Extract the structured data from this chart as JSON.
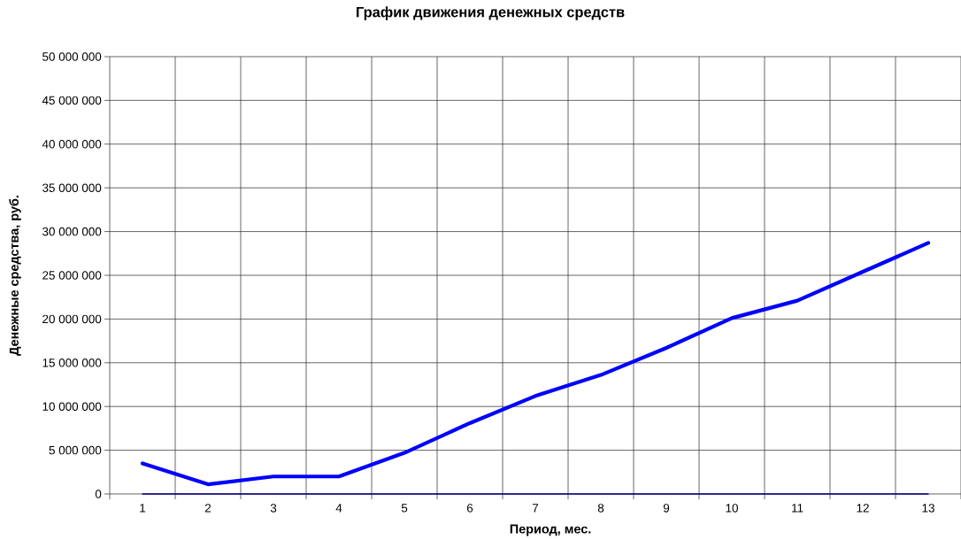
{
  "chart_data": {
    "type": "line",
    "title": "График движения денежных средств",
    "xlabel": "Период, мес.",
    "ylabel": "Денежные средства, руб.",
    "categories": [
      "1",
      "2",
      "3",
      "4",
      "5",
      "6",
      "7",
      "8",
      "9",
      "10",
      "11",
      "12",
      "13"
    ],
    "series": [
      {
        "color": "#0000ff",
        "values": [
          3500000,
          1100000,
          2000000,
          2000000,
          4700000,
          8100000,
          11200000,
          13600000,
          16700000,
          20100000,
          22100000,
          25400000,
          28700000
        ]
      },
      {
        "color": "#000080",
        "values": [
          0,
          0,
          0,
          0,
          0,
          0,
          0,
          0,
          0,
          0,
          0,
          0,
          0
        ]
      }
    ],
    "ylim": [
      0,
      50000000
    ],
    "yticks": [
      0,
      {
        "value": 5000000,
        "label": "5 000 000"
      },
      {
        "value": 10000000,
        "label": "10 000 000"
      },
      {
        "value": 15000000,
        "label": "15 000 000"
      },
      {
        "value": 20000000,
        "label": "20 000 000"
      },
      {
        "value": 25000000,
        "label": "25 000 000"
      },
      {
        "value": 30000000,
        "label": "30 000 000"
      },
      {
        "value": 35000000,
        "label": "35 000 000"
      },
      {
        "value": 40000000,
        "label": "40 000 000"
      },
      {
        "value": 45000000,
        "label": "45 000 000"
      },
      {
        "value": 50000000,
        "label": "50 000 000"
      }
    ],
    "grid": true
  }
}
